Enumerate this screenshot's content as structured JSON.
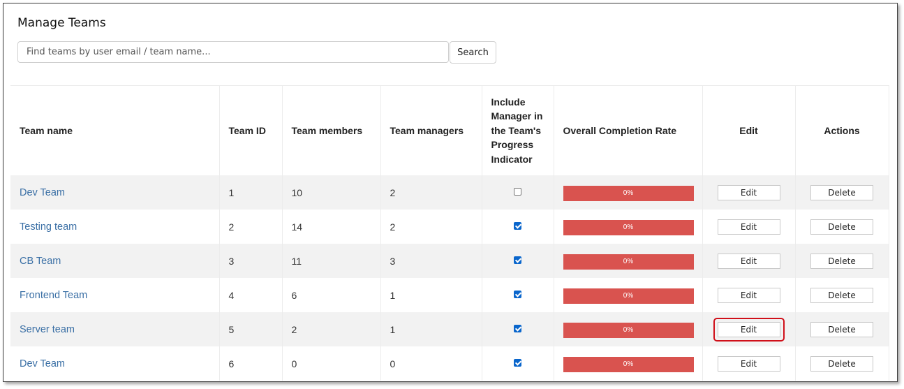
{
  "page": {
    "title": "Manage Teams"
  },
  "search": {
    "placeholder": "Find teams by user email / team name...",
    "value": "",
    "button_label": "Search"
  },
  "table": {
    "headers": {
      "team_name": "Team name",
      "team_id": "Team ID",
      "team_members": "Team members",
      "team_managers": "Team managers",
      "include_manager": "Include Manager in the Team's Progress Indicator",
      "completion_rate": "Overall Completion Rate",
      "edit": "Edit",
      "actions": "Actions"
    },
    "edit_label": "Edit",
    "delete_label": "Delete",
    "rows": [
      {
        "name": "Dev Team",
        "id": "1",
        "members": "10",
        "managers": "2",
        "include_manager": false,
        "completion": "0%"
      },
      {
        "name": "Testing team",
        "id": "2",
        "members": "14",
        "managers": "2",
        "include_manager": true,
        "completion": "0%"
      },
      {
        "name": "CB Team",
        "id": "3",
        "members": "11",
        "managers": "3",
        "include_manager": true,
        "completion": "0%"
      },
      {
        "name": "Frontend Team",
        "id": "4",
        "members": "6",
        "managers": "1",
        "include_manager": true,
        "completion": "0%"
      },
      {
        "name": "Server team",
        "id": "5",
        "members": "2",
        "managers": "1",
        "include_manager": true,
        "completion": "0%",
        "highlighted_edit": true
      },
      {
        "name": "Dev Team",
        "id": "6",
        "members": "0",
        "managers": "0",
        "include_manager": true,
        "completion": "0%"
      }
    ]
  },
  "colors": {
    "link": "#3a6fa5",
    "progress_bar": "#d9534f",
    "checkbox_checked": "#0a66cc",
    "highlight_outline": "#d0101a",
    "row_stripe": "#f2f2f2"
  }
}
